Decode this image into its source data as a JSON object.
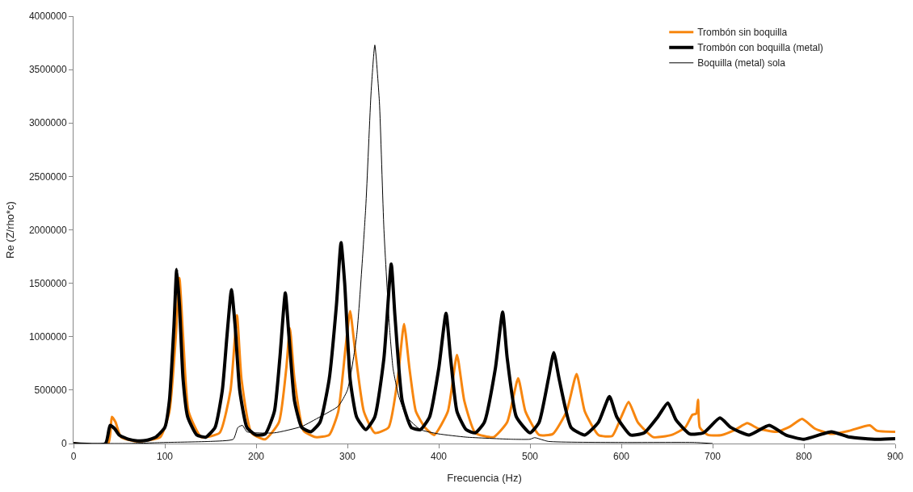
{
  "chart_data": {
    "type": "line",
    "xlabel": "Frecuencia (Hz)",
    "ylabel": "Re (Z/rho*c)",
    "xlim": [
      0,
      900
    ],
    "xticks": [
      0,
      100,
      200,
      300,
      400,
      500,
      600,
      700,
      800,
      900
    ],
    "ylim": [
      0,
      4000000
    ],
    "yticks": [
      0,
      500000,
      1000000,
      1500000,
      2000000,
      2500000,
      3000000,
      3500000,
      4000000
    ],
    "legend": "top right",
    "marker": "none",
    "line_style": "solid",
    "series": [
      {
        "name": "Trombón sin boquilla",
        "color": "#f7860f",
        "x": [
          0,
          38,
          42,
          46,
          52,
          70,
          95,
          105,
          112,
          116,
          120,
          126,
          140,
          160,
          172,
          179,
          184,
          195,
          210,
          225,
          233,
          237,
          242,
          252,
          265,
          280,
          290,
          298,
          303,
          308,
          318,
          330,
          345,
          355,
          362,
          368,
          375,
          385,
          395,
          410,
          420,
          428,
          440,
          460,
          475,
          487,
          495,
          510,
          525,
          540,
          551,
          560,
          575,
          590,
          600,
          608,
          618,
          635,
          655,
          670,
          678,
          682,
          684,
          686,
          695,
          710,
          725,
          738,
          750,
          770,
          785,
          798,
          812,
          830,
          850,
          872,
          880,
          900
        ],
        "values": [
          0,
          0,
          250000,
          200000,
          60000,
          20000,
          60000,
          300000,
          1000000,
          1550000,
          1000000,
          300000,
          60000,
          100000,
          500000,
          1200000,
          600000,
          100000,
          40000,
          200000,
          700000,
          1080000,
          600000,
          120000,
          60000,
          80000,
          300000,
          900000,
          1240000,
          900000,
          300000,
          100000,
          150000,
          600000,
          1120000,
          700000,
          300000,
          150000,
          80000,
          300000,
          830000,
          400000,
          100000,
          60000,
          200000,
          610000,
          300000,
          80000,
          90000,
          300000,
          650000,
          300000,
          80000,
          70000,
          250000,
          390000,
          200000,
          60000,
          80000,
          150000,
          270000,
          280000,
          410000,
          150000,
          80000,
          80000,
          130000,
          190000,
          140000,
          110000,
          160000,
          230000,
          140000,
          90000,
          120000,
          170000,
          120000,
          110000
        ]
      },
      {
        "name": "Trombón con boquilla (metal)",
        "color": "#000000",
        "x": [
          0,
          35,
          40,
          45,
          50,
          60,
          70,
          80,
          90,
          100,
          105,
          110,
          113,
          116,
          120,
          125,
          135,
          145,
          155,
          163,
          168,
          173,
          177,
          182,
          190,
          200,
          210,
          220,
          226,
          232,
          236,
          242,
          250,
          260,
          270,
          280,
          288,
          293,
          297,
          303,
          310,
          320,
          330,
          340,
          348,
          352,
          360,
          370,
          380,
          390,
          400,
          408,
          413,
          420,
          430,
          440,
          450,
          462,
          470,
          475,
          485,
          500,
          510,
          520,
          526,
          532,
          545,
          560,
          575,
          587,
          595,
          610,
          625,
          640,
          651,
          660,
          675,
          690,
          708,
          720,
          740,
          762,
          780,
          800,
          830,
          850,
          880,
          900
        ],
        "values": [
          0,
          0,
          170000,
          140000,
          80000,
          40000,
          25000,
          30000,
          60000,
          150000,
          400000,
          1100000,
          1630000,
          1300000,
          600000,
          250000,
          80000,
          60000,
          150000,
          500000,
          1000000,
          1440000,
          1100000,
          500000,
          150000,
          80000,
          90000,
          300000,
          800000,
          1410000,
          1000000,
          400000,
          150000,
          110000,
          200000,
          600000,
          1300000,
          1880000,
          1500000,
          600000,
          250000,
          130000,
          250000,
          800000,
          1680000,
          1200000,
          400000,
          150000,
          130000,
          250000,
          700000,
          1220000,
          800000,
          300000,
          130000,
          100000,
          200000,
          700000,
          1230000,
          800000,
          250000,
          100000,
          200000,
          600000,
          850000,
          600000,
          150000,
          80000,
          200000,
          440000,
          250000,
          80000,
          100000,
          250000,
          380000,
          220000,
          90000,
          100000,
          240000,
          150000,
          80000,
          170000,
          80000,
          40000,
          110000,
          60000,
          40000,
          45000
        ]
      },
      {
        "name": "Boquilla (metal) sola",
        "color": "#000000",
        "x": [
          0,
          30,
          60,
          100,
          150,
          175,
          180,
          185,
          190,
          220,
          250,
          270,
          290,
          300,
          310,
          320,
          326,
          330,
          335,
          340,
          346,
          350,
          356,
          365,
          380,
          400,
          430,
          480,
          500,
          505,
          520,
          600,
          680,
          700
        ],
        "values": [
          0,
          0,
          0,
          10000,
          20000,
          40000,
          150000,
          170000,
          110000,
          100000,
          160000,
          250000,
          350000,
          500000,
          1000000,
          2200000,
          3300000,
          3730000,
          3200000,
          2000000,
          1100000,
          700000,
          450000,
          250000,
          130000,
          90000,
          60000,
          40000,
          40000,
          55000,
          20000,
          10000,
          10000,
          0
        ]
      }
    ]
  }
}
